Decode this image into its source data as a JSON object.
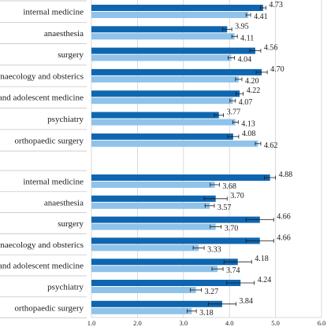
{
  "colors": {
    "series_dark": "#0f66b0",
    "series_light": "#8fc3ea",
    "error_bar": "#1a1a1a",
    "grid": "#d0d0d0",
    "panel_border": "#bdbdbd"
  },
  "chart_data": {
    "type": "bar",
    "orientation": "horizontal",
    "xlim": [
      1.0,
      6.0
    ],
    "x_ticks": [
      "1.0",
      "2.0",
      "3.0",
      "4.0",
      "5.0",
      "6.0"
    ],
    "grid": true,
    "legend": "none",
    "panels": [
      {
        "categories": [
          "internal medicine",
          "anaesthesia",
          "surgery",
          "gynaecology and obsterics",
          "child and adolescent medicine",
          "psychiatry",
          "orthopaedic surgery"
        ],
        "series": [
          {
            "values": [
              4.73,
              3.95,
              4.56,
              4.7,
              4.22,
              3.77,
              4.08
            ],
            "errors": [
              0.06,
              0.1,
              0.12,
              0.12,
              0.08,
              0.1,
              0.12
            ]
          },
          {
            "values": [
              4.41,
              4.11,
              4.04,
              4.2,
              4.07,
              4.13,
              4.62
            ],
            "errors": [
              0.05,
              0.06,
              0.07,
              0.07,
              0.06,
              0.06,
              0.06
            ]
          }
        ]
      },
      {
        "categories": [
          "internal medicine",
          "anaesthesia",
          "surgery",
          "gynaecology and obsterics",
          "child and adolescent medicine",
          "psychiatry",
          "orthopaedic surgery"
        ],
        "series": [
          {
            "values": [
              4.88,
              3.7,
              4.66,
              4.66,
              4.18,
              4.24,
              3.84
            ],
            "errors": [
              0.12,
              0.25,
              0.3,
              0.3,
              0.3,
              0.3,
              0.3
            ]
          },
          {
            "values": [
              3.68,
              3.57,
              3.7,
              3.33,
              3.74,
              3.27,
              3.18
            ],
            "errors": [
              0.1,
              0.1,
              0.12,
              0.12,
              0.12,
              0.12,
              0.1
            ]
          }
        ]
      }
    ]
  }
}
